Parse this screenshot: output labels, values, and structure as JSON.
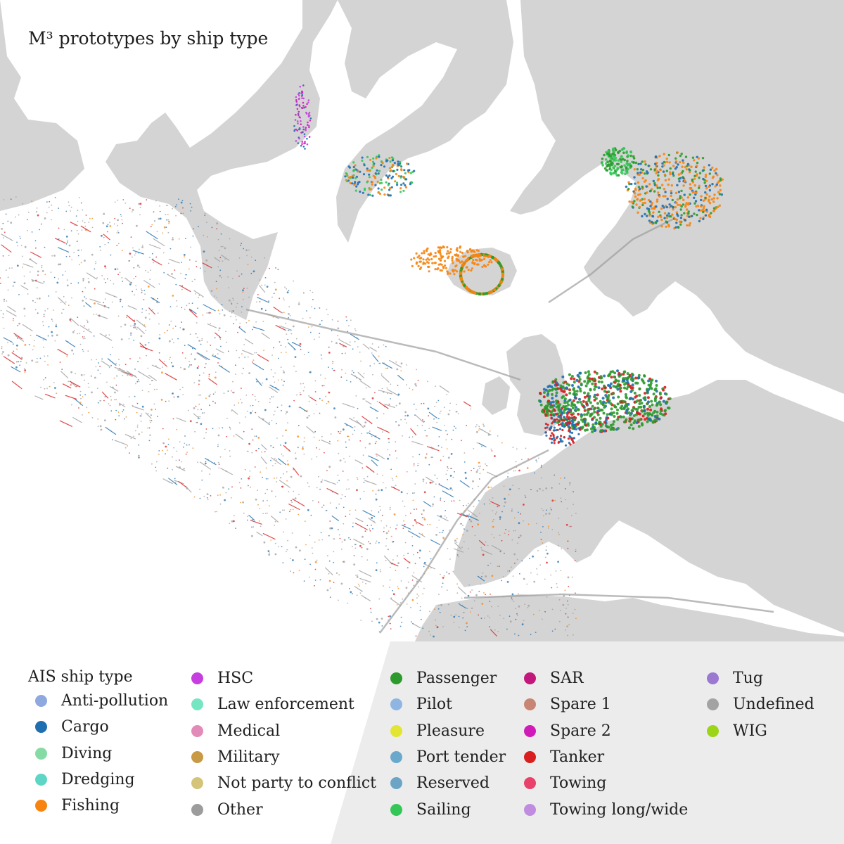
{
  "title": "M³ prototypes by ship type",
  "colors": {
    "land": "#d4d4d4",
    "sea": "#ffffff",
    "legend_panel": "#ececec",
    "track_gray": "#9e9e9e"
  },
  "legend": {
    "title": "AIS ship type",
    "columns": [
      [
        {
          "label": "Anti-pollution",
          "color": "#8ea8e0"
        },
        {
          "label": "Cargo",
          "color": "#1f6fb0"
        },
        {
          "label": "Diving",
          "color": "#86dba5"
        },
        {
          "label": "Dredging",
          "color": "#5ed6c6"
        },
        {
          "label": "Fishing",
          "color": "#f7840f"
        }
      ],
      [
        {
          "label": "HSC",
          "color": "#c63ee0"
        },
        {
          "label": "Law enforcement",
          "color": "#75e6c1"
        },
        {
          "label": "Medical",
          "color": "#e28bb9"
        },
        {
          "label": "Military",
          "color": "#c99a45"
        },
        {
          "label": "Not party to conflict",
          "color": "#d4c47a"
        },
        {
          "label": "Other",
          "color": "#9c9c9c"
        }
      ],
      [
        {
          "label": "Passenger",
          "color": "#2c9a2c"
        },
        {
          "label": "Pilot",
          "color": "#8fb5e2"
        },
        {
          "label": "Pleasure",
          "color": "#e2e532"
        },
        {
          "label": "Port tender",
          "color": "#6aa9cc"
        },
        {
          "label": "Reserved",
          "color": "#6ca4c6"
        },
        {
          "label": "Sailing",
          "color": "#34c758"
        }
      ],
      [
        {
          "label": "SAR",
          "color": "#c2187c"
        },
        {
          "label": "Spare 1",
          "color": "#c98574"
        },
        {
          "label": "Spare 2",
          "color": "#d01bb8"
        },
        {
          "label": "Tanker",
          "color": "#d81e1e"
        },
        {
          "label": "Towing",
          "color": "#e9416a"
        },
        {
          "label": "Towing long/wide",
          "color": "#c08ce0"
        }
      ],
      [
        {
          "label": "Tug",
          "color": "#9b78d2"
        },
        {
          "label": "Undefined",
          "color": "#a3a3a3"
        },
        {
          "label": "WIG",
          "color": "#9cd418"
        }
      ]
    ]
  }
}
